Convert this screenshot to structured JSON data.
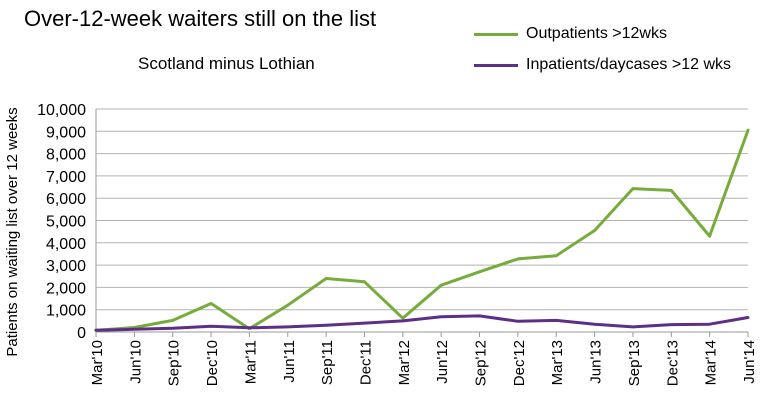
{
  "chart_data": {
    "type": "line",
    "title": "Over-12-week waiters still on the list",
    "subtitle": "Scotland minus Lothian",
    "ylabel": "Patients on waiting list over 12 weeks",
    "xlabel": "",
    "ylim": [
      0,
      10000
    ],
    "yticks": [
      0,
      1000,
      2000,
      3000,
      4000,
      5000,
      6000,
      7000,
      8000,
      9000,
      10000
    ],
    "ytick_labels": [
      "0",
      "1,000",
      "2,000",
      "3,000",
      "4,000",
      "5,000",
      "6,000",
      "7,000",
      "8,000",
      "9,000",
      "10,000"
    ],
    "grid": "horizontal",
    "legend_position": "top-right",
    "categories": [
      "Mar'10",
      "Jun'10",
      "Sep'10",
      "Dec'10",
      "Mar'11",
      "Jun'11",
      "Sep'11",
      "Dec'11",
      "Mar'12",
      "Jun'12",
      "Sep'12",
      "Dec'12",
      "Mar'13",
      "Jun'13",
      "Sep'13",
      "Dec'13",
      "Mar'14",
      "Jun'14"
    ],
    "series": [
      {
        "name": "Outpatients >12wks",
        "color": "#77ac3c",
        "values": [
          80,
          200,
          520,
          1280,
          150,
          1200,
          2400,
          2250,
          620,
          2100,
          2700,
          3280,
          3420,
          4550,
          6430,
          6350,
          4300,
          9050
        ]
      },
      {
        "name": "Inpatients/daycases >12 wks",
        "color": "#5e2f86",
        "values": [
          80,
          120,
          170,
          260,
          190,
          230,
          300,
          400,
          500,
          680,
          720,
          480,
          520,
          350,
          230,
          330,
          350,
          650
        ]
      }
    ]
  }
}
